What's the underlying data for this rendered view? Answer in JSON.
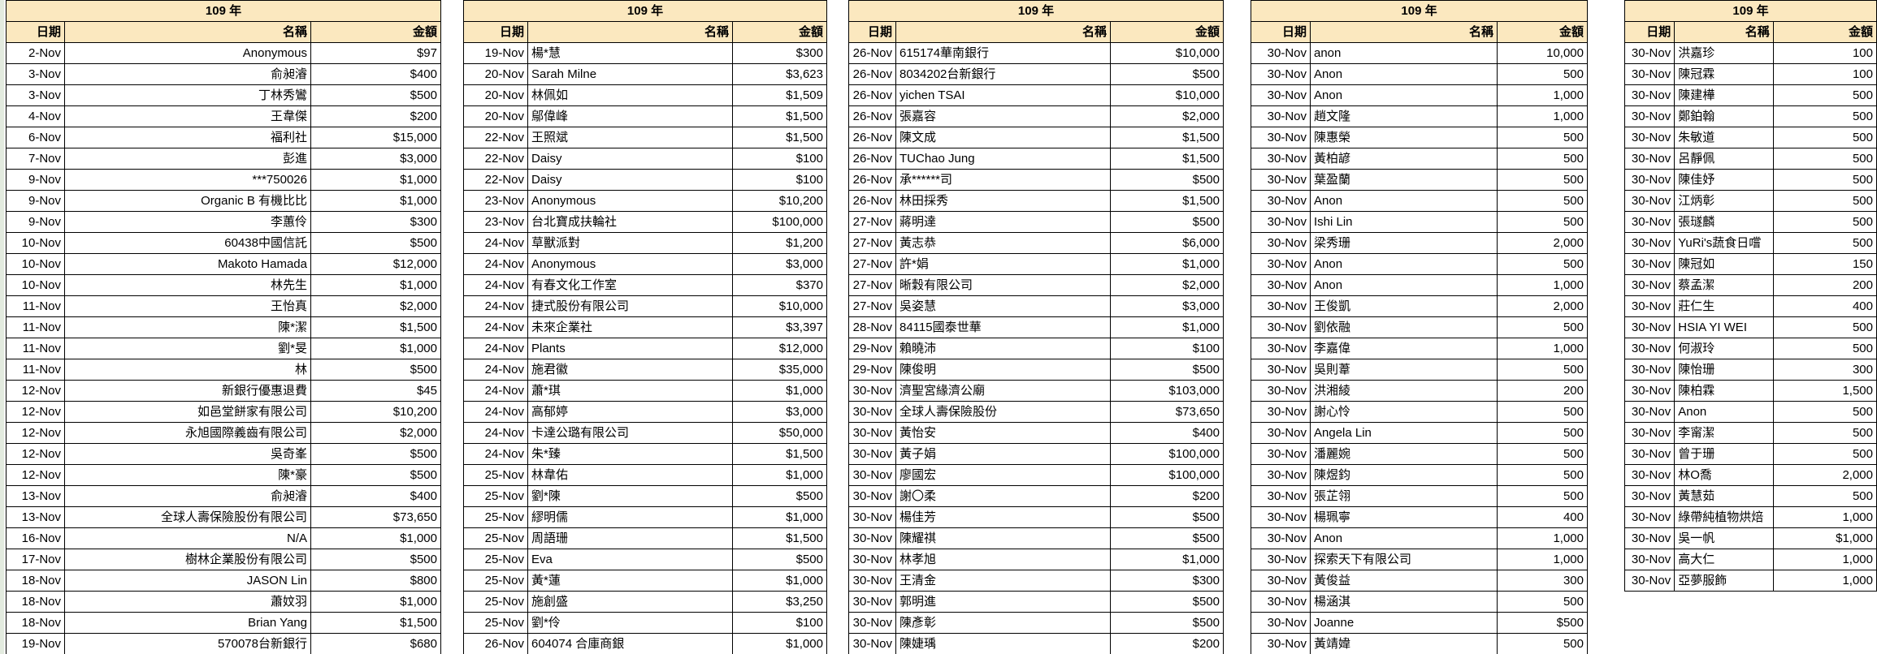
{
  "tables": [
    {
      "title": "109 年",
      "headers": [
        "日期",
        "名稱",
        "金額"
      ],
      "name_align": "right",
      "rows": [
        [
          "2-Nov",
          "Anonymous",
          "$97"
        ],
        [
          "3-Nov",
          "俞昶濬",
          "$400"
        ],
        [
          "3-Nov",
          "丁林秀鸞",
          "$500"
        ],
        [
          "4-Nov",
          "王韋傑",
          "$200"
        ],
        [
          "6-Nov",
          "福利社",
          "$15,000"
        ],
        [
          "7-Nov",
          "彭進",
          "$3,000"
        ],
        [
          "9-Nov",
          "***750026",
          "$1,000"
        ],
        [
          "9-Nov",
          "Organic B 有機比比",
          "$1,000"
        ],
        [
          "9-Nov",
          "李蕙伶",
          "$300"
        ],
        [
          "10-Nov",
          "60438中國信託",
          "$500"
        ],
        [
          "10-Nov",
          "Makoto Hamada",
          "$12,000"
        ],
        [
          "10-Nov",
          "林先生",
          "$1,000"
        ],
        [
          "11-Nov",
          "王怡真",
          "$2,000"
        ],
        [
          "11-Nov",
          "陳*潔",
          "$1,500"
        ],
        [
          "11-Nov",
          "劉*旻",
          "$1,000"
        ],
        [
          "11-Nov",
          "林",
          "$500"
        ],
        [
          "12-Nov",
          "新銀行優惠退費",
          "$45"
        ],
        [
          "12-Nov",
          "如邑堂餅家有限公司",
          "$10,200"
        ],
        [
          "12-Nov",
          "永旭國際義齒有限公司",
          "$2,000"
        ],
        [
          "12-Nov",
          "吳奇峯",
          "$500"
        ],
        [
          "12-Nov",
          "陳*豪",
          "$500"
        ],
        [
          "13-Nov",
          "俞昶濬",
          "$400"
        ],
        [
          "13-Nov",
          "全球人壽保險股份有限公司",
          "$73,650"
        ],
        [
          "16-Nov",
          "N/A",
          "$1,000"
        ],
        [
          "17-Nov",
          "樹林企業股份有限公司",
          "$500"
        ],
        [
          "18-Nov",
          "JASON Lin",
          "$800"
        ],
        [
          "18-Nov",
          "蕭妏羽",
          "$1,000"
        ],
        [
          "18-Nov",
          "Brian Yang",
          "$1,500"
        ],
        [
          "19-Nov",
          "570078台新銀行",
          "$680"
        ]
      ]
    },
    {
      "title": "109 年",
      "headers": [
        "日期",
        "名稱",
        "金額"
      ],
      "name_align": "left",
      "rows": [
        [
          "19-Nov",
          "楊*慧",
          "$300"
        ],
        [
          "20-Nov",
          "Sarah Milne",
          "$3,623"
        ],
        [
          "20-Nov",
          "林佩如",
          "$1,509"
        ],
        [
          "20-Nov",
          "鄔偉峰",
          "$1,500"
        ],
        [
          "22-Nov",
          "王照斌",
          "$1,500"
        ],
        [
          "22-Nov",
          "Daisy",
          "$100"
        ],
        [
          "22-Nov",
          "Daisy",
          "$100"
        ],
        [
          "23-Nov",
          "Anonymous",
          "$10,200"
        ],
        [
          "23-Nov",
          "台北寶成扶輪社",
          "$100,000"
        ],
        [
          "24-Nov",
          "草獸派對",
          "$1,200"
        ],
        [
          "24-Nov",
          "Anonymous",
          "$3,000"
        ],
        [
          "24-Nov",
          "有春文化工作室",
          "$370"
        ],
        [
          "24-Nov",
          "捷式股份有限公司",
          "$10,000"
        ],
        [
          "24-Nov",
          "未來企業社",
          "$3,397"
        ],
        [
          "24-Nov",
          "Plants",
          "$12,000"
        ],
        [
          "24-Nov",
          "施君徽",
          "$35,000"
        ],
        [
          "24-Nov",
          "蕭*琪",
          "$1,000"
        ],
        [
          "24-Nov",
          "高郁婷",
          "$3,000"
        ],
        [
          "24-Nov",
          "卡達公璐有限公司",
          "$50,000"
        ],
        [
          "24-Nov",
          "朱*臻",
          "$1,500"
        ],
        [
          "25-Nov",
          "林韋佑",
          "$1,000"
        ],
        [
          "25-Nov",
          "劉*陳",
          "$500"
        ],
        [
          "25-Nov",
          "繆明儒",
          "$1,000"
        ],
        [
          "25-Nov",
          "周語珊",
          "$1,500"
        ],
        [
          "25-Nov",
          "Eva",
          "$500"
        ],
        [
          "25-Nov",
          "黃*蓮",
          "$1,000"
        ],
        [
          "25-Nov",
          "施創盛",
          "$3,250"
        ],
        [
          "25-Nov",
          "劉*伶",
          "$100"
        ],
        [
          "26-Nov",
          "604074 合庫商銀",
          "$1,000"
        ]
      ]
    },
    {
      "title": "109 年",
      "headers": [
        "日期",
        "名稱",
        "金額"
      ],
      "name_align": "left",
      "rows": [
        [
          "26-Nov",
          "615174華南銀行",
          "$10,000"
        ],
        [
          "26-Nov",
          "8034202台新銀行",
          "$500"
        ],
        [
          "26-Nov",
          "yichen TSAI",
          "$10,000"
        ],
        [
          "26-Nov",
          "張嘉容",
          "$2,000"
        ],
        [
          "26-Nov",
          "陳文成",
          "$1,500"
        ],
        [
          "26-Nov",
          "TUChao Jung",
          "$1,500"
        ],
        [
          "26-Nov",
          "承******司",
          "$500"
        ],
        [
          "26-Nov",
          "林田採秀",
          "$1,500"
        ],
        [
          "27-Nov",
          "蔣明達",
          "$500"
        ],
        [
          "27-Nov",
          "黃志恭",
          "$6,000"
        ],
        [
          "27-Nov",
          "許*娟",
          "$1,000"
        ],
        [
          "27-Nov",
          "晰穀有限公司",
          "$2,000"
        ],
        [
          "27-Nov",
          "吳姿慧",
          "$3,000"
        ],
        [
          "28-Nov",
          "84115國泰世華",
          "$1,000"
        ],
        [
          "29-Nov",
          "賴曉沛",
          "$100"
        ],
        [
          "29-Nov",
          "陳俊明",
          "$500"
        ],
        [
          "30-Nov",
          "濟聖宮緣濟公廟",
          "$103,000"
        ],
        [
          "30-Nov",
          "全球人壽保險股份",
          "$73,650"
        ],
        [
          "30-Nov",
          "黃怡安",
          "$400"
        ],
        [
          "30-Nov",
          "黃子娟",
          "$100,000"
        ],
        [
          "30-Nov",
          "廖國宏",
          "$100,000"
        ],
        [
          "30-Nov",
          "謝〇柔",
          "$200"
        ],
        [
          "30-Nov",
          "楊佳芳",
          "$500"
        ],
        [
          "30-Nov",
          "陳耀祺",
          "$500"
        ],
        [
          "30-Nov",
          "林孝旭",
          "$1,000"
        ],
        [
          "30-Nov",
          "王清金",
          "$300"
        ],
        [
          "30-Nov",
          "郭明進",
          "$500"
        ],
        [
          "30-Nov",
          "陳彥彰",
          "$500"
        ],
        [
          "30-Nov",
          "陳婕瑀",
          "$200"
        ]
      ]
    },
    {
      "title": "109 年",
      "headers": [
        "日期",
        "名稱",
        "金額"
      ],
      "name_align": "left",
      "gray_name_rows": [
        24
      ],
      "large_name_rows": [
        7,
        23
      ],
      "large_amount_rows": [
        10,
        21,
        26
      ],
      "rows": [
        [
          "30-Nov",
          "anon",
          "10,000"
        ],
        [
          "30-Nov",
          "Anon",
          "500"
        ],
        [
          "30-Nov",
          "Anon",
          "1,000"
        ],
        [
          "30-Nov",
          "趙文隆",
          "1,000"
        ],
        [
          "30-Nov",
          "陳惠榮",
          "500"
        ],
        [
          "30-Nov",
          "黃柏諺",
          "500"
        ],
        [
          "30-Nov",
          "葉盈蘭",
          "500"
        ],
        [
          "30-Nov",
          "Anon",
          "500"
        ],
        [
          "30-Nov",
          "Ishi Lin",
          "500"
        ],
        [
          "30-Nov",
          "梁秀珊",
          "2,000"
        ],
        [
          "30-Nov",
          "Anon",
          "500"
        ],
        [
          "30-Nov",
          "Anon",
          "1,000"
        ],
        [
          "30-Nov",
          "王俊凱",
          "2,000"
        ],
        [
          "30-Nov",
          "劉依融",
          "500"
        ],
        [
          "30-Nov",
          "李嘉偉",
          "1,000"
        ],
        [
          "30-Nov",
          "吳則葦",
          "500"
        ],
        [
          "30-Nov",
          "洪湘綾",
          "200"
        ],
        [
          "30-Nov",
          "謝心怜",
          "500"
        ],
        [
          "30-Nov",
          "Angela Lin",
          "500"
        ],
        [
          "30-Nov",
          "潘麗婉",
          "500"
        ],
        [
          "30-Nov",
          "陳煜鈞",
          "500"
        ],
        [
          "30-Nov",
          "張芷翎",
          "500"
        ],
        [
          "30-Nov",
          "楊珮寧",
          "400"
        ],
        [
          "30-Nov",
          "Anon",
          "1,000"
        ],
        [
          "30-Nov",
          "探索天下有限公司",
          "1,000"
        ],
        [
          "30-Nov",
          "黃俊益",
          "300"
        ],
        [
          "30-Nov",
          "楊涵淇",
          "500"
        ],
        [
          "30-Nov",
          "Joanne",
          "$500"
        ],
        [
          "30-Nov",
          "黃靖媁",
          "500"
        ]
      ]
    },
    {
      "title": "109 年",
      "headers": [
        "日期",
        "名稱",
        "金額"
      ],
      "name_align": "left",
      "gray_name_rows": [
        5,
        8
      ],
      "rows": [
        [
          "30-Nov",
          "洪嘉珍",
          "100"
        ],
        [
          "30-Nov",
          "陳冠霖",
          "100"
        ],
        [
          "30-Nov",
          "陳建樺",
          "500"
        ],
        [
          "30-Nov",
          "鄭鉑翰",
          "500"
        ],
        [
          "30-Nov",
          "朱敏道",
          "500"
        ],
        [
          "30-Nov",
          "呂靜佩",
          "500"
        ],
        [
          "30-Nov",
          "陳佳妤",
          "500"
        ],
        [
          "30-Nov",
          "江炳彰",
          "500"
        ],
        [
          "30-Nov",
          "張璲麟",
          "500"
        ],
        [
          "30-Nov",
          "YuRi's蔬食日嚐",
          "500"
        ],
        [
          "30-Nov",
          "陳冠如",
          "150"
        ],
        [
          "30-Nov",
          "蔡孟潔",
          "200"
        ],
        [
          "30-Nov",
          "莊仁生",
          "400"
        ],
        [
          "30-Nov",
          "HSIA YI WEI",
          "500"
        ],
        [
          "30-Nov",
          "何淑玲",
          "500"
        ],
        [
          "30-Nov",
          "陳怡珊",
          "300"
        ],
        [
          "30-Nov",
          "陳柏霖",
          "1,500"
        ],
        [
          "30-Nov",
          "Anon",
          "500"
        ],
        [
          "30-Nov",
          "李甯潔",
          "500"
        ],
        [
          "30-Nov",
          "曾于珊",
          "500"
        ],
        [
          "30-Nov",
          "林O喬",
          "2,000"
        ],
        [
          "30-Nov",
          "黃慧茹",
          "500"
        ],
        [
          "30-Nov",
          "綠帶純植物烘焙",
          "1,000"
        ],
        [
          "30-Nov",
          "吳一帆",
          "$1,000"
        ],
        [
          "30-Nov",
          "高大仁",
          "1,000"
        ],
        [
          "30-Nov",
          "亞夢服飾",
          "1,000"
        ]
      ]
    }
  ]
}
